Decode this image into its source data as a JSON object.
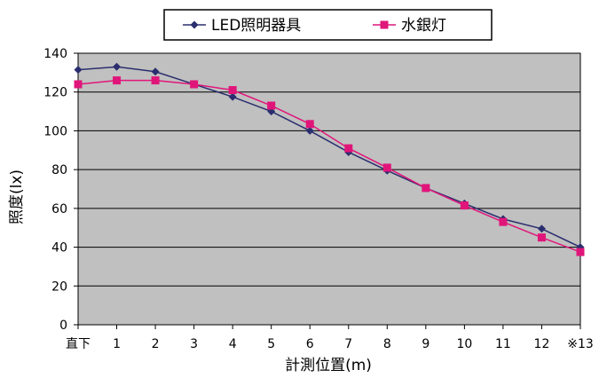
{
  "chart_data": {
    "type": "line",
    "title": "",
    "xlabel": "計測位置(m)",
    "ylabel": "照度(lx)",
    "categories": [
      "直下",
      "1",
      "2",
      "3",
      "4",
      "5",
      "6",
      "7",
      "8",
      "9",
      "10",
      "11",
      "12",
      "※13"
    ],
    "ylim": [
      0,
      140
    ],
    "yticks": [
      0,
      20,
      40,
      60,
      80,
      100,
      120,
      140
    ],
    "grid": true,
    "legend_position": "top",
    "plot_background": "#c0c0c0",
    "series": [
      {
        "name": "LED照明器具",
        "color": "#2b2e6e",
        "marker": "diamond",
        "values": [
          131.5,
          133,
          130.5,
          124,
          117.5,
          110,
          100,
          89,
          79.5,
          70.5,
          62.5,
          54.5,
          49.5,
          40
        ]
      },
      {
        "name": "水銀灯",
        "color": "#e0157a",
        "marker": "square",
        "values": [
          124,
          126,
          126,
          124,
          121,
          113,
          103.5,
          91,
          81,
          70.5,
          61.5,
          53,
          45,
          37.5
        ]
      }
    ]
  }
}
